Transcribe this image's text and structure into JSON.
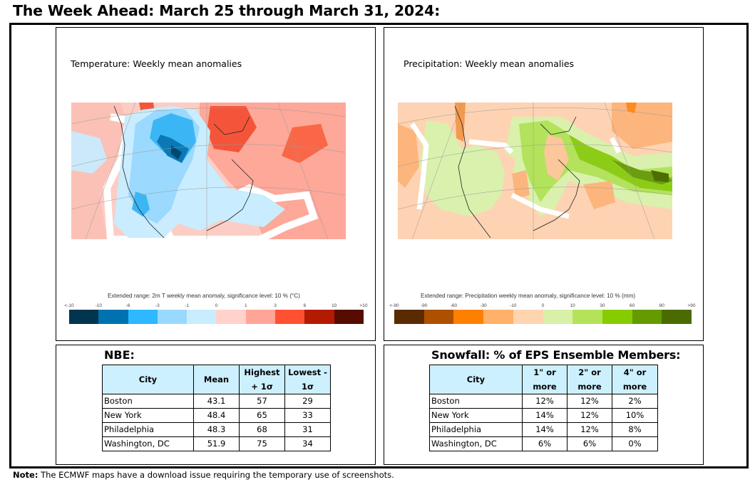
{
  "page_title": "The Week Ahead: March 25 through March 31, 2024:",
  "temperature_panel": {
    "title": "Temperature: Weekly mean anomalies",
    "colorbar_caption": "Extended range: 2m T weekly mean anomaly, significance level: 10 % (°C)",
    "colorbar_labels": [
      "<-10",
      "-10",
      "-6",
      "-3",
      "-1",
      "0",
      "1",
      "3",
      "6",
      "10",
      ">10"
    ],
    "colorbar_colors": [
      "#00344f",
      "#0072b0",
      "#2db8ff",
      "#99d9ff",
      "#c9ecff",
      "#ffd2cc",
      "#ffa597",
      "#ff5131",
      "#b31b00",
      "#560c00"
    ]
  },
  "precipitation_panel": {
    "title": "Precipitation: Weekly mean anomalies",
    "colorbar_caption": "Extended range: Precipitation weekly mean anomaly, significance level: 10 % (mm)",
    "colorbar_labels": [
      "<-90",
      "-90",
      "-60",
      "-30",
      "-10",
      "0",
      "10",
      "30",
      "60",
      "90",
      ">90"
    ],
    "colorbar_colors": [
      "#5a2a00",
      "#ad5100",
      "#ff8000",
      "#ffb069",
      "#ffd5b0",
      "#d8f0a8",
      "#b4e35a",
      "#87cc00",
      "#659a00",
      "#4b6b00"
    ]
  },
  "nbe_table": {
    "title": "NBE:",
    "headers": [
      "City",
      "Mean",
      "Highest + 1σ",
      "Lowest - 1σ"
    ],
    "rows": [
      [
        "Boston",
        "43.1",
        "57",
        "29"
      ],
      [
        "New York",
        "48.4",
        "65",
        "33"
      ],
      [
        "Philadelphia",
        "48.3",
        "68",
        "31"
      ],
      [
        "Washington, DC",
        "51.9",
        "75",
        "34"
      ]
    ]
  },
  "snowfall_table": {
    "title": "Snowfall: % of EPS Ensemble Members:",
    "headers": [
      "City",
      "1\" or more",
      "2\" or more",
      "4\" or more"
    ],
    "rows": [
      [
        "Boston",
        "12%",
        "12%",
        "2%"
      ],
      [
        "New York",
        "14%",
        "12%",
        "10%"
      ],
      [
        "Philadelphia",
        "14%",
        "12%",
        "8%"
      ],
      [
        "Washington, DC",
        "6%",
        "6%",
        "0%"
      ]
    ]
  },
  "note": {
    "label": "Note:",
    "text": " The ECMWF maps have a download issue requiring the temporary use of screenshots."
  }
}
